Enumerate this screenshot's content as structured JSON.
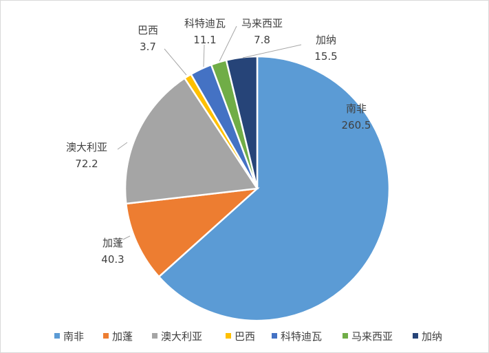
{
  "chart_data": {
    "type": "pie",
    "title": "",
    "categories": [
      "南非",
      "加蓬",
      "澳大利亚",
      "巴西",
      "科特迪瓦",
      "马来西亚",
      "加纳"
    ],
    "values": [
      260.5,
      40.3,
      72.2,
      3.7,
      11.1,
      7.8,
      15.5
    ],
    "value_labels": [
      "260.5",
      "40.3",
      "72.2",
      "3.7",
      "11.1",
      "7.8",
      "15.5"
    ],
    "colors": [
      "#5B9BD5",
      "#ED7D31",
      "#A5A5A5",
      "#FFC000",
      "#4472C4",
      "#70AD47",
      "#264478"
    ],
    "start_angle": "12 o'clock",
    "direction": "clockwise",
    "legend_position": "bottom"
  }
}
